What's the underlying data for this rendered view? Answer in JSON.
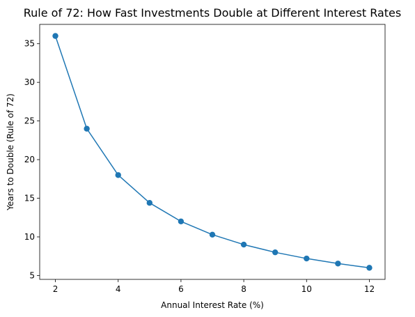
{
  "chart_data": {
    "type": "line",
    "title": "Rule of 72: How Fast Investments Double at Different Interest Rates",
    "xlabel": "Annual Interest Rate (%)",
    "ylabel": "Years to Double (Rule of 72)",
    "x": [
      2,
      3,
      4,
      5,
      6,
      7,
      8,
      9,
      10,
      11,
      12
    ],
    "series": [
      {
        "values": [
          36,
          24,
          18,
          14.4,
          12,
          10.29,
          9,
          8,
          7.2,
          6.55,
          6
        ],
        "color": "#1f77b4",
        "marker": "circle"
      }
    ],
    "xticks": [
      2,
      4,
      6,
      8,
      10,
      12
    ],
    "yticks": [
      5,
      10,
      15,
      20,
      25,
      30,
      35
    ],
    "xlim": [
      1.5,
      12.5
    ],
    "ylim": [
      4.5,
      37.5
    ],
    "grid": false,
    "legend": "none"
  }
}
